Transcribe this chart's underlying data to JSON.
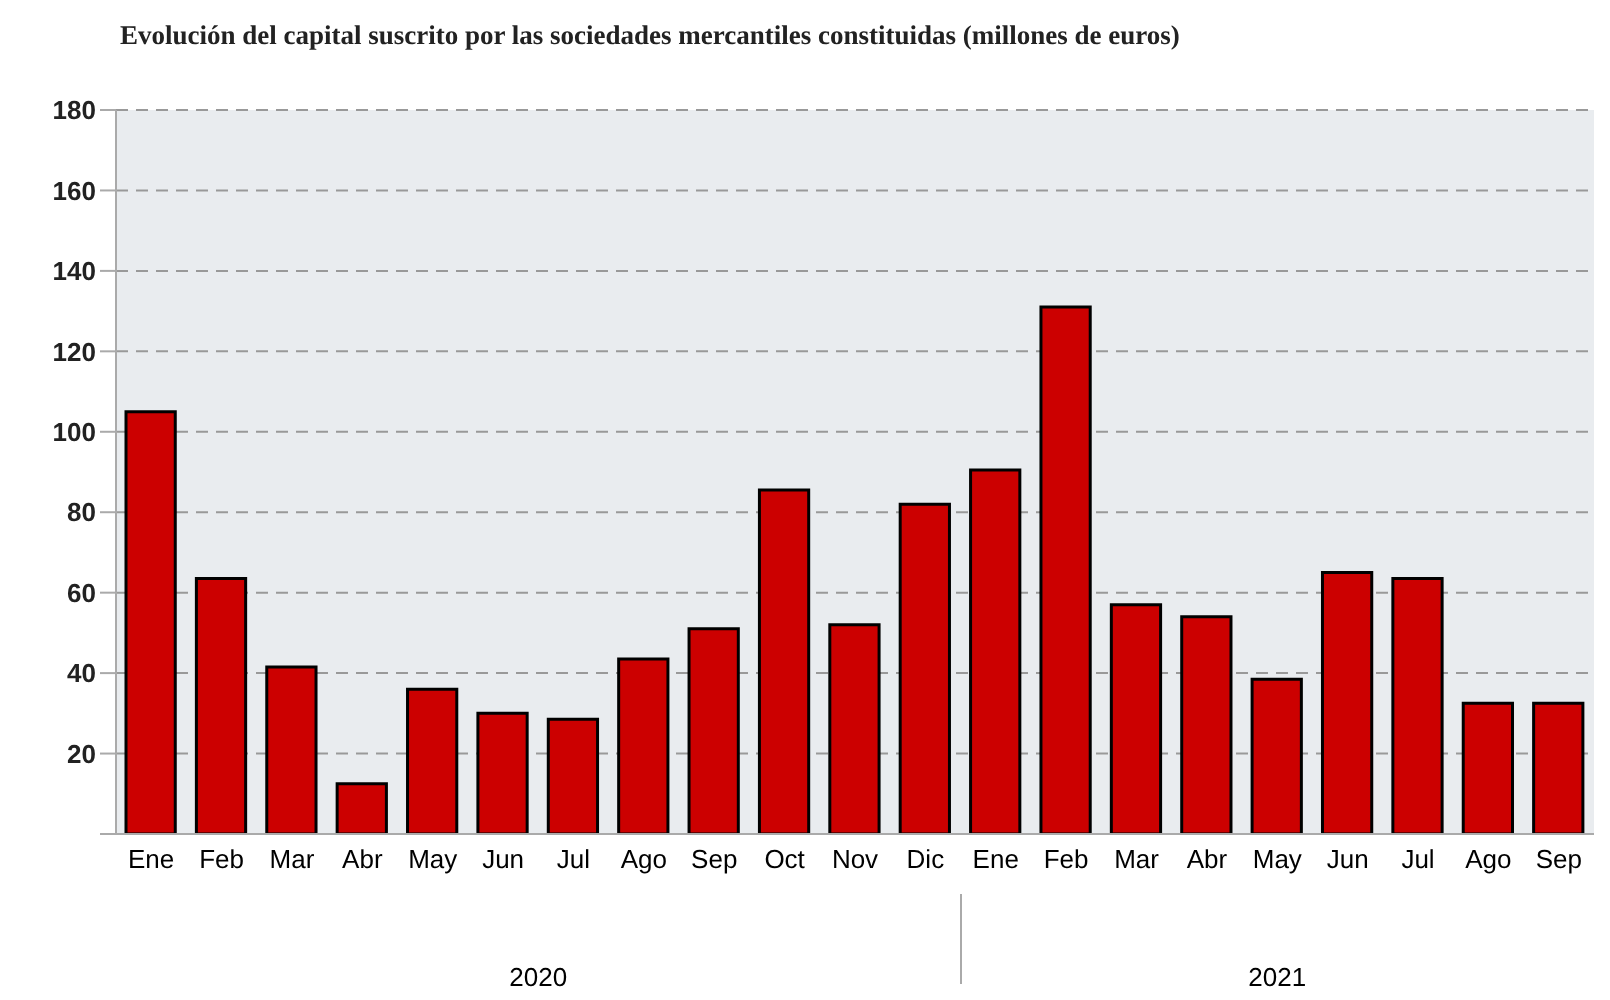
{
  "chart_data": {
    "type": "bar",
    "title": "Evolución del capital suscrito por las sociedades mercantiles constituidas (millones de euros)",
    "categories": [
      "Ene",
      "Feb",
      "Mar",
      "Abr",
      "May",
      "Jun",
      "Jul",
      "Ago",
      "Sep",
      "Oct",
      "Nov",
      "Dic",
      "Ene",
      "Feb",
      "Mar",
      "Abr",
      "May",
      "Jun",
      "Jul",
      "Ago",
      "Sep"
    ],
    "values": [
      105,
      63.5,
      41.5,
      12.5,
      36,
      30,
      28.5,
      43.5,
      51,
      85.5,
      52,
      82,
      90.5,
      131,
      57,
      54,
      38.5,
      65,
      63.5,
      32.5,
      32.5
    ],
    "color": "#cc0000",
    "ylim": [
      0,
      180
    ],
    "yticks": [
      {
        "value": 0,
        "label": null
      },
      20,
      40,
      60,
      80,
      100,
      120,
      140,
      160,
      180
    ],
    "grid": "y",
    "annotations": [
      "2020",
      "2021"
    ]
  }
}
